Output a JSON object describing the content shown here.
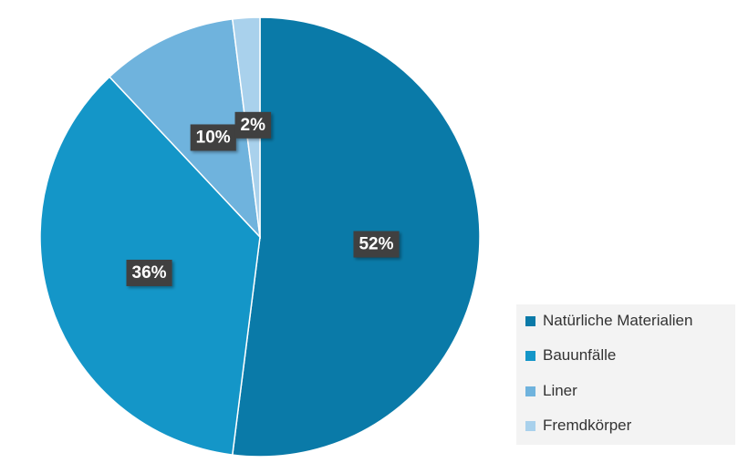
{
  "chart_data": {
    "type": "pie",
    "title": "",
    "slices": [
      {
        "name": "Natürliche Materialien",
        "value": 52,
        "label": "52%",
        "color": "#0a7aa8"
      },
      {
        "name": "Bauunfälle",
        "value": 36,
        "label": "36%",
        "color": "#1496c8"
      },
      {
        "name": "Liner",
        "value": 10,
        "label": "10%",
        "color": "#6fb3dd"
      },
      {
        "name": "Fremdkörper",
        "value": 2,
        "label": "2%",
        "color": "#a9d1ec"
      }
    ],
    "start_angle_deg": 0,
    "direction": "clockwise",
    "legend_position": "bottom-right",
    "data_label_style": {
      "background": "#404040",
      "text_color": "#ffffff"
    }
  }
}
